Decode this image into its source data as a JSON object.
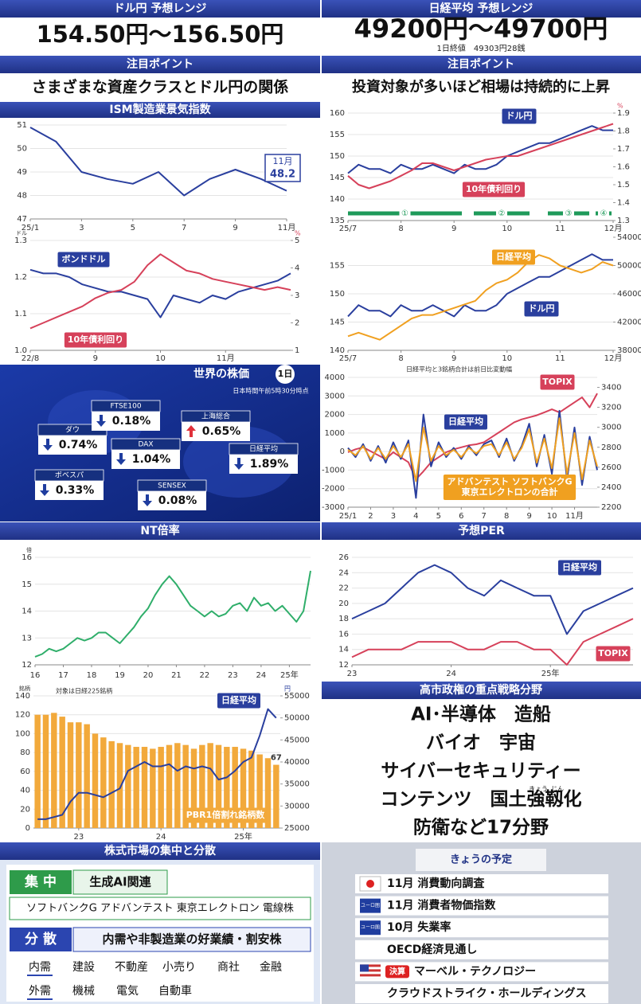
{
  "left": {
    "forecast": {
      "title": "ドル円 予想レンジ",
      "range": "154.50円～156.50円"
    },
    "focus": {
      "title": "注目ポイント",
      "text": "さまざまな資産クラスとドル円の関係"
    },
    "world_stocks": {
      "title": "世界の株価",
      "badge": "1日",
      "time": "日本時間午前5時30分時点",
      "items": [
        {
          "name": "ダウ",
          "change": "0.74%",
          "direction": "down"
        },
        {
          "name": "FTSE100",
          "change": "0.18%",
          "direction": "down"
        },
        {
          "name": "上海総合",
          "change": "0.65%",
          "direction": "up"
        },
        {
          "name": "DAX",
          "change": "1.04%",
          "direction": "down"
        },
        {
          "name": "日経平均",
          "change": "1.89%",
          "direction": "down"
        },
        {
          "name": "ボベスパ",
          "change": "0.33%",
          "direction": "down"
        },
        {
          "name": "SENSEX",
          "change": "0.08%",
          "direction": "down"
        }
      ]
    },
    "market": {
      "title": "株式市場の集中と分散",
      "concentrate": {
        "label": "集 中",
        "theme": "生成AI関連",
        "stocks": "ソフトバンクG アドバンテスト 東京エレクトロン 電線株"
      },
      "disperse": {
        "label": "分 散",
        "theme": "内需や非製造業の好業績・割安株",
        "rows": [
          [
            "内需",
            "建設",
            "不動産",
            "小売り",
            "商社",
            "金融"
          ],
          [
            "外需",
            "機械",
            "電気",
            "自動車"
          ]
        ]
      }
    }
  },
  "right": {
    "forecast": {
      "title": "日経平均 予想レンジ",
      "range": "49200円～49700円",
      "close": "1日終値　49303円28銭"
    },
    "focus": {
      "title": "注目ポイント",
      "text": "投資対象が多いほど相場は持続的に上昇"
    },
    "strategy": {
      "title": "高市政権の重点戦略分野",
      "lines": [
        "AI･半導体　造船",
        "バイオ　宇宙",
        "サイバーセキュリティー",
        "コンテンツ　国土強靱化",
        "防衛など17分野"
      ],
      "ruby": [
        "きょう",
        "じん"
      ]
    },
    "schedule": {
      "title": "きょうの予定",
      "items": [
        {
          "region": "japan",
          "text": "11月 消費動向調査"
        },
        {
          "region": "eu",
          "icon_label": "ユーロ圏",
          "text": "11月 消費者物価指数"
        },
        {
          "region": "eu",
          "icon_label": "ユーロ圏",
          "text": "10月 失業率"
        },
        {
          "text": "OECD経済見通し"
        },
        {
          "region": "us",
          "tag": "決算",
          "text": "マーベル・テクノロジー"
        },
        {
          "text": "クラウドストライク・ホールディングス"
        }
      ]
    }
  },
  "chart_data": [
    {
      "type": "line",
      "title": "ISM製造業景気指数",
      "grid": true,
      "categories": [
        "25/1",
        null,
        "3",
        null,
        "5",
        null,
        "7",
        null,
        "9",
        null,
        "11月"
      ],
      "series": [
        {
          "color": "#2a3f9e",
          "values": [
            50.9,
            50.3,
            49.0,
            48.7,
            48.5,
            49.0,
            48.0,
            48.7,
            49.1,
            48.7,
            48.2
          ]
        }
      ],
      "ylim": [
        47,
        51
      ],
      "yticks": [
        47,
        48,
        49,
        50,
        51
      ]
    },
    {
      "type": "line",
      "grid": true,
      "categories": [
        "22/8",
        null,
        null,
        null,
        null,
        "9",
        null,
        null,
        null,
        null,
        "10",
        null,
        null,
        null,
        null,
        "11月",
        null,
        null,
        null,
        null,
        null
      ],
      "series": [
        {
          "name": "ボンドドル",
          "color": "#2a3f9e",
          "values": [
            1.22,
            1.21,
            1.21,
            1.2,
            1.18,
            1.17,
            1.16,
            1.16,
            1.15,
            1.14,
            1.09,
            1.15,
            1.14,
            1.13,
            1.15,
            1.14,
            1.16,
            1.17,
            1.18,
            1.19,
            1.21
          ]
        },
        {
          "name": "10年債利回り",
          "color": "#d6415a",
          "axis": "y2",
          "values": [
            1.8,
            2.0,
            2.2,
            2.4,
            2.6,
            2.9,
            3.1,
            3.2,
            3.5,
            4.1,
            4.5,
            4.2,
            3.9,
            3.8,
            3.6,
            3.5,
            3.4,
            3.3,
            3.2,
            3.3,
            3.2
          ]
        }
      ],
      "ylim": [
        1.0,
        1.3
      ],
      "yticks": [
        {
          "value": 1,
          "label": "1.0"
        },
        1.1,
        1.2,
        1.3
      ],
      "y_unit": "ドル",
      "y2lim": [
        1,
        5
      ],
      "y2ticks": [
        1,
        2,
        3,
        4,
        5
      ],
      "y2_unit": "%"
    },
    {
      "type": "line",
      "title": "NT倍率",
      "grid": true,
      "categories": [
        "16",
        null,
        null,
        null,
        "17",
        null,
        null,
        null,
        "18",
        null,
        null,
        null,
        "19",
        null,
        null,
        null,
        "20",
        null,
        null,
        null,
        "21",
        null,
        null,
        null,
        "22",
        null,
        null,
        null,
        "23",
        null,
        null,
        null,
        "24",
        null,
        null,
        null,
        "25年",
        null,
        null,
        null
      ],
      "series": [
        {
          "color": "#2fae6a",
          "values": [
            12.3,
            12.4,
            12.6,
            12.5,
            12.6,
            12.8,
            13.0,
            12.9,
            13.0,
            13.2,
            13.2,
            13.0,
            12.8,
            13.1,
            13.4,
            13.8,
            14.1,
            14.6,
            15.0,
            15.3,
            15.0,
            14.6,
            14.2,
            14.0,
            13.8,
            14.0,
            13.8,
            13.9,
            14.2,
            14.3,
            14.0,
            14.5,
            14.2,
            14.3,
            14.0,
            14.2,
            13.9,
            13.6,
            14.0,
            15.5
          ]
        }
      ],
      "ylim": [
        12,
        16
      ],
      "yticks": [
        12,
        13,
        14,
        15,
        16
      ],
      "y_unit": "倍"
    },
    {
      "type": "bar",
      "note": "対象は日経225銘柄",
      "grid": true,
      "categories": [
        null,
        null,
        null,
        null,
        null,
        "23",
        null,
        null,
        null,
        null,
        null,
        null,
        null,
        null,
        null,
        "24",
        null,
        null,
        null,
        null,
        null,
        null,
        null,
        null,
        null,
        "25年",
        null,
        null,
        null,
        null
      ],
      "series": [
        {
          "name": "PBR1倍割れ銘柄数",
          "color": "#f2a93b",
          "values": [
            120,
            120,
            122,
            118,
            112,
            112,
            110,
            100,
            96,
            92,
            90,
            88,
            86,
            86,
            84,
            86,
            88,
            90,
            88,
            84,
            88,
            90,
            88,
            86,
            86,
            84,
            82,
            78,
            74,
            67
          ]
        },
        {
          "name": "日経平均",
          "type": "line",
          "color": "#2a3f9e",
          "axis": "y2",
          "values": [
            27000,
            27000,
            27500,
            28000,
            31000,
            33000,
            33000,
            32500,
            32000,
            33000,
            34000,
            38000,
            39000,
            40000,
            39000,
            39000,
            39500,
            38000,
            39000,
            38500,
            39000,
            38500,
            36000,
            36500,
            38000,
            40000,
            41000,
            46000,
            52000,
            50000
          ]
        }
      ],
      "ylim": [
        0,
        140
      ],
      "yticks": [
        0,
        20,
        40,
        60,
        80,
        100,
        120,
        140
      ],
      "y_unit": "銘柄",
      "y2lim": [
        25000,
        55000
      ],
      "y2ticks": [
        25000,
        30000,
        35000,
        40000,
        45000,
        50000,
        55000
      ],
      "y2_unit": "円"
    },
    {
      "type": "line",
      "grid": true,
      "phases": [
        "①",
        "②",
        "③",
        "④"
      ],
      "categories": [
        "25/7",
        null,
        null,
        null,
        null,
        "8",
        null,
        null,
        null,
        null,
        "9",
        null,
        null,
        null,
        null,
        "10",
        null,
        null,
        null,
        null,
        "11",
        null,
        null,
        null,
        null,
        "12月"
      ],
      "series": [
        {
          "name": "ドル円",
          "color": "#2a3f9e",
          "values": [
            146,
            148,
            147,
            147,
            146,
            148,
            147,
            147,
            148,
            147,
            146,
            148,
            147,
            147,
            148,
            150,
            151,
            152,
            153,
            153,
            154,
            155,
            156,
            157,
            156,
            156
          ]
        },
        {
          "name": "10年債利回り",
          "color": "#d6415a",
          "axis": "y2",
          "values": [
            1.55,
            1.5,
            1.48,
            1.5,
            1.52,
            1.55,
            1.58,
            1.62,
            1.62,
            1.6,
            1.58,
            1.6,
            1.62,
            1.64,
            1.65,
            1.66,
            1.66,
            1.68,
            1.7,
            1.72,
            1.74,
            1.76,
            1.78,
            1.8,
            1.82,
            1.84
          ]
        }
      ],
      "ylim": [
        135,
        160
      ],
      "yticks": [
        135,
        140,
        145,
        150,
        155,
        160
      ],
      "y2lim": [
        1.3,
        1.9
      ],
      "y2ticks": [
        1.3,
        1.4,
        1.5,
        1.6,
        1.7,
        1.8,
        1.9
      ],
      "y2_unit": "%"
    },
    {
      "type": "line",
      "grid": true,
      "categories": [
        "25/7",
        null,
        null,
        null,
        null,
        "8",
        null,
        null,
        null,
        null,
        "9",
        null,
        null,
        null,
        null,
        "10",
        null,
        null,
        null,
        null,
        "11",
        null,
        null,
        null,
        null,
        "12月"
      ],
      "series": [
        {
          "name": "ドル円",
          "color": "#2a3f9e",
          "values": [
            146,
            148,
            147,
            147,
            146,
            148,
            147,
            147,
            148,
            147,
            146,
            148,
            147,
            147,
            148,
            150,
            151,
            152,
            153,
            153,
            154,
            155,
            156,
            157,
            156,
            156
          ]
        },
        {
          "name": "日経平均",
          "color": "#f0a020",
          "axis": "y2",
          "values": [
            40000,
            40500,
            40000,
            39500,
            40500,
            41500,
            42500,
            43000,
            43000,
            43500,
            44000,
            44500,
            45000,
            46500,
            47500,
            48000,
            49000,
            50500,
            51500,
            51000,
            50000,
            49500,
            49000,
            49500,
            50500,
            50000
          ]
        }
      ],
      "ylim": [
        140,
        160
      ],
      "yticks": [
        140,
        145,
        150,
        155
      ],
      "y2lim": [
        38000,
        54000
      ],
      "y2ticks": [
        38000,
        42000,
        46000,
        50000,
        54000
      ]
    },
    {
      "type": "line",
      "note": "日経平均と3銘柄合計は前日比変動幅",
      "grid": true,
      "categories": [
        "25/1",
        null,
        null,
        "2",
        null,
        null,
        "3",
        null,
        null,
        "4",
        null,
        null,
        "5",
        null,
        null,
        "6",
        null,
        null,
        "7",
        null,
        null,
        "8",
        null,
        null,
        "9",
        null,
        null,
        "10",
        null,
        null,
        "11月",
        null,
        null,
        null
      ],
      "series": [
        {
          "name": "TOPIX",
          "color": "#d6415a",
          "axis": "y2",
          "values": [
            2750,
            2780,
            2800,
            2760,
            2720,
            2680,
            2750,
            2700,
            2650,
            2480,
            2560,
            2650,
            2700,
            2750,
            2780,
            2800,
            2820,
            2830,
            2850,
            2900,
            2950,
            3000,
            3050,
            3080,
            3100,
            3120,
            3150,
            3180,
            3150,
            3200,
            3250,
            3300,
            3200,
            3340
          ]
        },
        {
          "name": "日経平均",
          "color": "#2a3f9e",
          "values": [
            200,
            -300,
            400,
            -500,
            300,
            -600,
            500,
            -400,
            600,
            -2500,
            2000,
            -800,
            500,
            -300,
            200,
            -400,
            300,
            -200,
            400,
            600,
            -300,
            700,
            -500,
            300,
            1500,
            -800,
            900,
            -1200,
            2200,
            -1500,
            1300,
            -1800,
            800,
            -1000
          ]
        },
        {
          "name": "アドバンテスト ソフトバンクG\n東京エレクトロンの合計",
          "color": "#f0a020",
          "values": [
            100,
            -200,
            300,
            -400,
            200,
            -400,
            300,
            -300,
            400,
            -1600,
            1300,
            -500,
            300,
            -200,
            100,
            -300,
            200,
            -100,
            300,
            400,
            -200,
            500,
            -400,
            200,
            1200,
            -600,
            700,
            -900,
            1800,
            -1200,
            1000,
            -1500,
            600,
            -800
          ]
        }
      ],
      "ylim": [
        -3000,
        4000
      ],
      "yticks": [
        -3000,
        -2000,
        -1000,
        0,
        1000,
        2000,
        3000,
        4000
      ],
      "y2lim": [
        2200,
        3500
      ],
      "y2ticks": [
        2200,
        2400,
        2600,
        2800,
        3000,
        3200,
        3400
      ]
    },
    {
      "type": "line",
      "title": "予想PER",
      "grid": true,
      "categories": [
        "23",
        null,
        null,
        null,
        null,
        null,
        "24",
        null,
        null,
        null,
        null,
        null,
        "25年",
        null,
        null,
        null,
        null,
        null
      ],
      "series": [
        {
          "name": "日経平均",
          "color": "#2a3f9e",
          "values": [
            18,
            19,
            20,
            22,
            24,
            25,
            24,
            22,
            21,
            23,
            22,
            21,
            21,
            16,
            19,
            20,
            21,
            22
          ]
        },
        {
          "name": "TOPIX",
          "color": "#d6415a",
          "values": [
            13,
            14,
            14,
            14,
            15,
            15,
            15,
            14,
            14,
            15,
            15,
            14,
            14,
            12,
            15,
            16,
            17,
            18
          ]
        }
      ],
      "ylim": [
        12,
        26
      ],
      "yticks": [
        12,
        14,
        16,
        18,
        20,
        22,
        24,
        26
      ]
    }
  ]
}
